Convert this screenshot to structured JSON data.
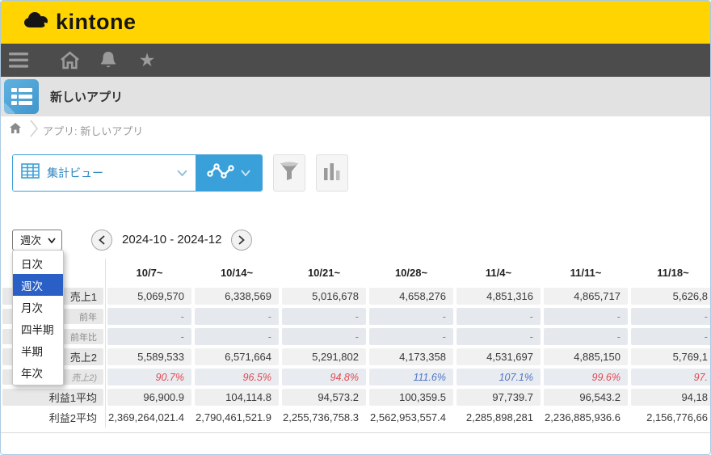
{
  "topbar": {
    "logo_text": "kintone"
  },
  "navbar": {
    "icons": [
      "hamburger-icon",
      "home-icon",
      "bell-icon",
      "star-icon"
    ]
  },
  "app_header": {
    "title": "新しいアプリ",
    "icon": "app-table-icon"
  },
  "breadcrumb": {
    "text": "アプリ: 新しいアプリ",
    "icons": [
      "home-icon",
      "chevron-right-icon"
    ]
  },
  "view_bar": {
    "view_name": "集計ビュー",
    "icons": [
      "table-grid-icon",
      "chevron-down-icon",
      "line-chart-icon",
      "chevron-down-icon",
      "funnel-icon",
      "bar-chart-icon"
    ]
  },
  "period": {
    "selected": "週次",
    "options": [
      "日次",
      "週次",
      "月次",
      "四半期",
      "半期",
      "年次"
    ],
    "range": "2024-10 - 2024-12",
    "nav_icons": [
      "chevron-left-icon",
      "chevron-right-icon"
    ]
  },
  "table": {
    "columns": [
      "10/7~",
      "10/14~",
      "10/21~",
      "10/28~",
      "11/4~",
      "11/11~",
      "11/18~"
    ],
    "rows": [
      {
        "label": "売上1",
        "type": "main",
        "values": [
          "5,069,570",
          "6,338,569",
          "5,016,678",
          "4,658,276",
          "4,851,316",
          "4,865,717",
          "5,626,8"
        ]
      },
      {
        "label": "前年",
        "type": "sub",
        "values": [
          "-",
          "-",
          "-",
          "-",
          "-",
          "-",
          "-"
        ]
      },
      {
        "label": "前年比",
        "type": "sub",
        "values": [
          "-",
          "-",
          "-",
          "-",
          "-",
          "-",
          "-"
        ]
      },
      {
        "label": "売上2",
        "type": "main",
        "values": [
          "5,589,533",
          "6,571,664",
          "5,291,802",
          "4,173,358",
          "4,531,697",
          "4,885,150",
          "5,769,1"
        ]
      },
      {
        "label": "売上2)",
        "type": "pct",
        "values": [
          "90.7%",
          "96.5%",
          "94.8%",
          "111.6%",
          "107.1%",
          "99.6%",
          "97."
        ]
      },
      {
        "label": "利益1平均",
        "type": "avg",
        "values": [
          "96,900.9",
          "104,114.8",
          "94,573.2",
          "100,359.5",
          "97,739.7",
          "96,543.2",
          "94,18"
        ]
      },
      {
        "label": "利益2平均",
        "type": "plain",
        "values": [
          "2,369,264,021.4",
          "2,790,461,521.9",
          "2,255,736,758.3",
          "2,562,953,557.4",
          "2,285,898,281",
          "2,236,885,936.6",
          "2,156,776,66"
        ]
      }
    ]
  },
  "colors": {
    "brand_yellow": "#ffd400",
    "nav_dark": "#4c4c4c",
    "accent_blue": "#3aa0d9",
    "select_highlight": "#2a60c5",
    "pct_negative": "#e0494f",
    "pct_positive": "#4f74c8"
  }
}
